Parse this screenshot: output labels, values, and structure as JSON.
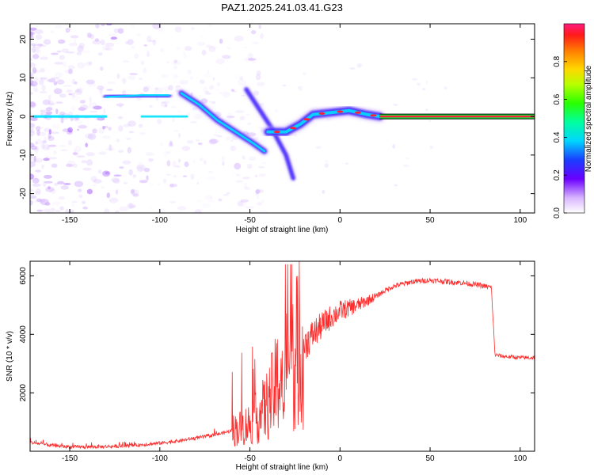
{
  "title": "PAZ1.2025.241.03.41.G23",
  "colors": {
    "snr_line": "#ff2a2a",
    "ridge_core": "#ff1f3d",
    "ridge_mid": "#00e0ff",
    "ridge_outer": "#3a1cff",
    "spectral_bg": "#e9dcfb"
  },
  "chart_data": [
    {
      "type": "heatmap",
      "name": "spectrogram",
      "xlabel": "Height of straight line (km)",
      "ylabel": "Frequency (Hz)",
      "xlim": [
        -172,
        108
      ],
      "ylim": [
        -25,
        24
      ],
      "xticks": [
        -150,
        -100,
        -50,
        0,
        50,
        100
      ],
      "yticks": [
        -20,
        -10,
        0,
        10,
        20
      ],
      "colorbar": {
        "label": "Normalized spectral amplitude",
        "range": [
          0,
          1
        ],
        "ticks": [
          "0.0",
          "0.2",
          "0.4",
          "0.6",
          "0.8"
        ],
        "tick_values": [
          0.0,
          0.2,
          0.4,
          0.6,
          0.8
        ]
      },
      "ridges": [
        {
          "name": "carrier",
          "points": [
            [
              -170,
              0
            ],
            [
              -150,
              0
            ],
            [
              -130,
              0
            ]
          ],
          "amplitude": 0.55
        },
        {
          "name": "upper-branch",
          "points": [
            [
              -130,
              5
            ],
            [
              -110,
              5.5
            ],
            [
              -95,
              5.5
            ]
          ],
          "amplitude": 0.35
        },
        {
          "name": "lower-branch",
          "points": [
            [
              -110,
              0
            ],
            [
              -95,
              0
            ],
            [
              -85,
              0
            ]
          ],
          "amplitude": 0.45
        },
        {
          "name": "descending",
          "points": [
            [
              -88,
              6
            ],
            [
              -78,
              3
            ],
            [
              -68,
              -1
            ],
            [
              -58,
              -4
            ],
            [
              -48,
              -7
            ],
            [
              -42,
              -9
            ]
          ],
          "amplitude": 0.45
        },
        {
          "name": "faint-diagonal",
          "points": [
            [
              -52,
              7
            ],
            [
              -45,
              2
            ],
            [
              -38,
              -3
            ],
            [
              -30,
              -10
            ],
            [
              -26,
              -16
            ]
          ],
          "amplitude": 0.25
        },
        {
          "name": "recovery",
          "points": [
            [
              -40,
              -4
            ],
            [
              -30,
              -4
            ],
            [
              -22,
              -2
            ],
            [
              -15,
              0.5
            ],
            [
              -5,
              1
            ],
            [
              5,
              1.5
            ],
            [
              15,
              0.5
            ],
            [
              22,
              0
            ]
          ],
          "amplitude": 0.75
        },
        {
          "name": "tone",
          "points": [
            [
              22,
              0
            ],
            [
              108,
              0
            ]
          ],
          "amplitude": 1.0
        }
      ]
    },
    {
      "type": "line",
      "name": "snr",
      "xlabel": "Height of straight line (km)",
      "ylabel": "SNR (10 * v/v)",
      "xlim": [
        -172,
        108
      ],
      "ylim": [
        0,
        6500
      ],
      "xticks": [
        -150,
        -100,
        -50,
        0,
        50,
        100
      ],
      "yticks": [
        2000,
        4000,
        6000
      ],
      "series": [
        {
          "name": "SNR",
          "x": [
            -172,
            -160,
            -150,
            -140,
            -130,
            -120,
            -110,
            -100,
            -90,
            -80,
            -70,
            -60,
            -55,
            -50,
            -45,
            -40,
            -35,
            -30,
            -28,
            -26,
            -24,
            -22,
            -20,
            -15,
            -10,
            -5,
            0,
            5,
            10,
            15,
            20,
            25,
            30,
            40,
            50,
            60,
            70,
            80,
            84,
            86,
            90,
            100,
            108
          ],
          "values": [
            300,
            200,
            150,
            150,
            160,
            180,
            220,
            280,
            350,
            450,
            550,
            700,
            800,
            950,
            1200,
            1600,
            2300,
            3200,
            3000,
            3100,
            3300,
            3500,
            3600,
            4000,
            4300,
            4600,
            4800,
            4900,
            5000,
            5150,
            5300,
            5500,
            5650,
            5800,
            5850,
            5800,
            5750,
            5650,
            5600,
            3300,
            3250,
            3200,
            3200
          ]
        }
      ]
    }
  ]
}
